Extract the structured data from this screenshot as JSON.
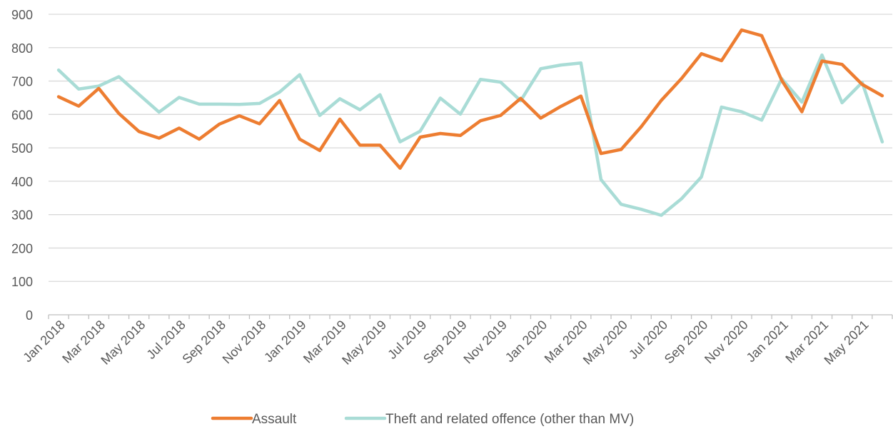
{
  "chart_data": {
    "type": "line",
    "title": "",
    "xlabel": "",
    "ylabel": "",
    "ylim": [
      0,
      900
    ],
    "yticks": [
      0,
      100,
      200,
      300,
      400,
      500,
      600,
      700,
      800,
      900
    ],
    "grid": true,
    "legend_position": "bottom",
    "x": [
      "Jan 2018",
      "Feb 2018",
      "Mar 2018",
      "Apr 2018",
      "May 2018",
      "Jun 2018",
      "Jul 2018",
      "Aug 2018",
      "Sep 2018",
      "Oct 2018",
      "Nov 2018",
      "Dec 2018",
      "Jan 2019",
      "Feb 2019",
      "Mar 2019",
      "Apr 2019",
      "May 2019",
      "Jun 2019",
      "Jul 2019",
      "Aug 2019",
      "Sep 2019",
      "Oct 2019",
      "Nov 2019",
      "Dec 2019",
      "Jan 2020",
      "Feb 2020",
      "Mar 2020",
      "Apr 2020",
      "May 2020",
      "Jun 2020",
      "Jul 2020",
      "Aug 2020",
      "Sep 2020",
      "Oct 2020",
      "Nov 2020",
      "Dec 2020",
      "Jan 2021",
      "Feb 2021",
      "Mar 2021",
      "Apr 2021",
      "May 2021",
      "Jun 2021"
    ],
    "x_tick_labels": [
      "Jan 2018",
      "Mar 2018",
      "May 2018",
      "Jul 2018",
      "Sep 2018",
      "Nov 2018",
      "Jan 2019",
      "Mar 2019",
      "May 2019",
      "Jul 2019",
      "Sep 2019",
      "Nov 2019",
      "Jan 2020",
      "Mar 2020",
      "May 2020",
      "Jul 2020",
      "Sep 2020",
      "Nov 2020",
      "Jan 2021",
      "Mar 2021",
      "May 2021"
    ],
    "series": [
      {
        "name": "Assault",
        "color": "#ED7D31",
        "values": [
          653,
          625,
          678,
          603,
          549,
          529,
          559,
          526,
          571,
          596,
          572,
          642,
          526,
          492,
          586,
          508,
          508,
          439,
          532,
          543,
          537,
          581,
          597,
          648,
          589,
          624,
          655,
          483,
          495,
          563,
          642,
          707,
          782,
          761,
          853,
          836,
          702,
          608,
          760,
          750,
          690,
          656
        ]
      },
      {
        "name": "Theft and related offence (other than MV)",
        "color": "#A9DCD6",
        "values": [
          733,
          676,
          685,
          713,
          660,
          607,
          651,
          631,
          631,
          630,
          633,
          667,
          719,
          597,
          647,
          614,
          659,
          518,
          550,
          649,
          601,
          705,
          697,
          641,
          737,
          748,
          754,
          405,
          331,
          316,
          298,
          347,
          413,
          622,
          608,
          583,
          707,
          637,
          778,
          635,
          696,
          518
        ]
      }
    ]
  }
}
